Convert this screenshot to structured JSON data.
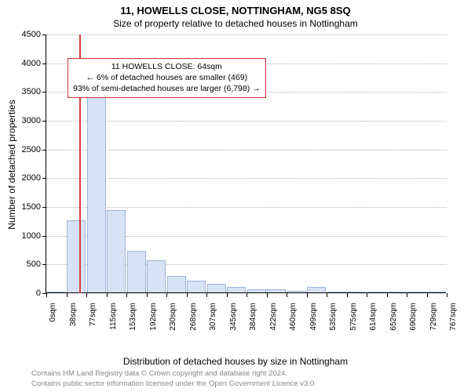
{
  "title": "11, HOWELLS CLOSE, NOTTINGHAM, NG5 8SQ",
  "subtitle": "Size of property relative to detached houses in Nottingham",
  "ylabel": "Number of detached properties",
  "xlabel": "Distribution of detached houses by size in Nottingham",
  "chart": {
    "type": "histogram",
    "background_color": "#ffffff",
    "grid_color": "#b0b0b0",
    "axis_color": "#000000",
    "bar_fill": "#d7e2f4",
    "bar_stroke": "#9db3d9",
    "bar_width_ratio": 0.95,
    "ylim": [
      0,
      4500
    ],
    "ytick_step": 500,
    "x_tick_labels": [
      "0sqm",
      "38sqm",
      "77sqm",
      "115sqm",
      "153sqm",
      "192sqm",
      "230sqm",
      "268sqm",
      "307sqm",
      "345sqm",
      "384sqm",
      "422sqm",
      "460sqm",
      "499sqm",
      "535sqm",
      "575sqm",
      "614sqm",
      "652sqm",
      "690sqm",
      "729sqm",
      "767sqm"
    ],
    "values": [
      0,
      1260,
      3480,
      1430,
      720,
      560,
      290,
      200,
      150,
      90,
      60,
      60,
      30,
      100,
      15,
      0,
      10,
      10,
      10,
      10
    ],
    "marker": {
      "x_value_sqm": 64,
      "x_position_bins": 1.66,
      "color": "#d73c3c"
    },
    "annotation": {
      "border_color": "#c83737",
      "line1": "11 HOWELLS CLOSE: 64sqm",
      "line2": "← 6% of detached houses are smaller (469)",
      "line3": "93% of semi-detached houses are larger (6,798) →"
    },
    "title_fontsize": 13,
    "subtitle_fontsize": 12,
    "axis_label_fontsize": 12,
    "tick_fontsize": 11
  },
  "footer": {
    "line1": "Contains HM Land Registry data © Crown copyright and database right 2024.",
    "line2": "Contains public sector information licensed under the Open Government Licence v3.0.",
    "color": "#888888"
  }
}
